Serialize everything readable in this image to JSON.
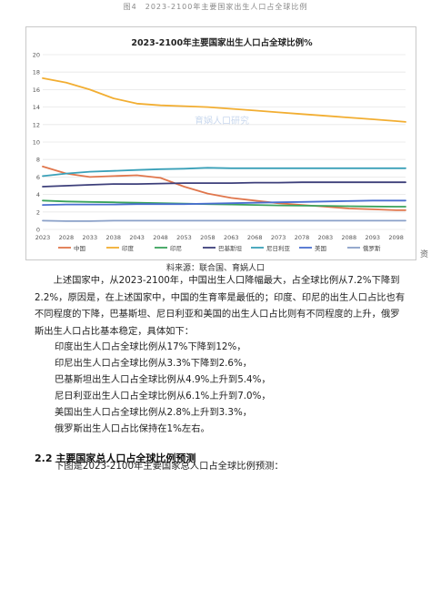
{
  "figure_caption": "图4　2023-2100年主要国家出生人口占全球比例",
  "side_char": "资",
  "source": "料来源：联合国、育娲人口",
  "chart_data": {
    "type": "line",
    "title": "2023-2100年主要国家出生人口占全球比例%",
    "watermark": "育娲人口研究",
    "xlabel": "",
    "ylabel": "",
    "x_ticks": [
      2023,
      2028,
      2033,
      2038,
      2043,
      2048,
      2053,
      2058,
      2063,
      2068,
      2073,
      2078,
      2083,
      2088,
      2093,
      2098
    ],
    "xlim": [
      2023,
      2100
    ],
    "ylim": [
      0,
      20
    ],
    "y_ticks": [
      0,
      2,
      4,
      6,
      8,
      10,
      12,
      14,
      16,
      18,
      20
    ],
    "grid": true,
    "legend_position": "bottom",
    "x": [
      2023,
      2028,
      2033,
      2038,
      2043,
      2048,
      2053,
      2058,
      2063,
      2068,
      2073,
      2078,
      2083,
      2088,
      2093,
      2098,
      2100
    ],
    "series": [
      {
        "name": "中国",
        "color": "#e0764c",
        "values": [
          7.2,
          6.4,
          6.0,
          6.1,
          6.2,
          5.9,
          4.9,
          4.1,
          3.6,
          3.3,
          3.0,
          2.8,
          2.6,
          2.4,
          2.3,
          2.2,
          2.2
        ]
      },
      {
        "name": "印度",
        "color": "#f2ae32",
        "values": [
          17.3,
          16.8,
          16.0,
          15.0,
          14.4,
          14.2,
          14.1,
          14.0,
          13.8,
          13.6,
          13.4,
          13.2,
          13.0,
          12.8,
          12.6,
          12.4,
          12.3
        ]
      },
      {
        "name": "印尼",
        "color": "#3aa35c",
        "values": [
          3.3,
          3.2,
          3.15,
          3.1,
          3.05,
          3.0,
          2.95,
          2.9,
          2.85,
          2.8,
          2.75,
          2.72,
          2.7,
          2.66,
          2.63,
          2.6,
          2.6
        ]
      },
      {
        "name": "巴基斯坦",
        "color": "#3d3f7a",
        "values": [
          4.9,
          5.0,
          5.1,
          5.2,
          5.2,
          5.25,
          5.3,
          5.3,
          5.3,
          5.35,
          5.35,
          5.4,
          5.4,
          5.4,
          5.4,
          5.4,
          5.4
        ]
      },
      {
        "name": "尼日利亚",
        "color": "#3aa0b8",
        "values": [
          6.1,
          6.4,
          6.6,
          6.7,
          6.8,
          6.9,
          6.95,
          7.05,
          7.0,
          7.0,
          7.0,
          7.0,
          7.0,
          7.0,
          7.0,
          7.0,
          7.0
        ]
      },
      {
        "name": "美国",
        "color": "#4a6fd0",
        "values": [
          2.8,
          2.85,
          2.85,
          2.85,
          2.9,
          2.9,
          2.9,
          2.95,
          3.0,
          3.05,
          3.1,
          3.15,
          3.2,
          3.25,
          3.3,
          3.3,
          3.3
        ]
      },
      {
        "name": "俄罗斯",
        "color": "#8aa0c8",
        "values": [
          1.0,
          0.95,
          0.95,
          1.0,
          1.0,
          1.0,
          1.0,
          1.0,
          1.0,
          1.0,
          1.0,
          1.0,
          1.0,
          1.0,
          1.0,
          1.0,
          1.0
        ]
      }
    ]
  },
  "paragraph1": "上述国家中，从2023-2100年，中国出生人口降幅最大，占全球比例从7.2%下降到2.2%，原因是，在上述国家中，中国的生育率是最低的；印度、印尼的出生人口占比也有不同程度的下降，巴基斯坦、尼日利亚和美国的出生人口占比则有不同程度的上升，俄罗斯出生人口占比基本稳定，具体如下：",
  "list": [
    "印度出生人口占全球比例从17%下降到12%，",
    "印尼出生人口占全球比例从3.3%下降到2.6%，",
    "巴基斯坦出生人口占全球比例从4.9%上升到5.4%，",
    "尼日利亚出生人口占全球比例从6.1%上升到7.0%，",
    "美国出生人口占全球比例从2.8%上升到3.3%，",
    "俄罗斯出生人口占比保持在1%左右。"
  ],
  "section_title": "2.2 主要国家总人口占全球比例预测",
  "section_intro": "下图是2023-2100年主要国家总人口占全球比例预测："
}
